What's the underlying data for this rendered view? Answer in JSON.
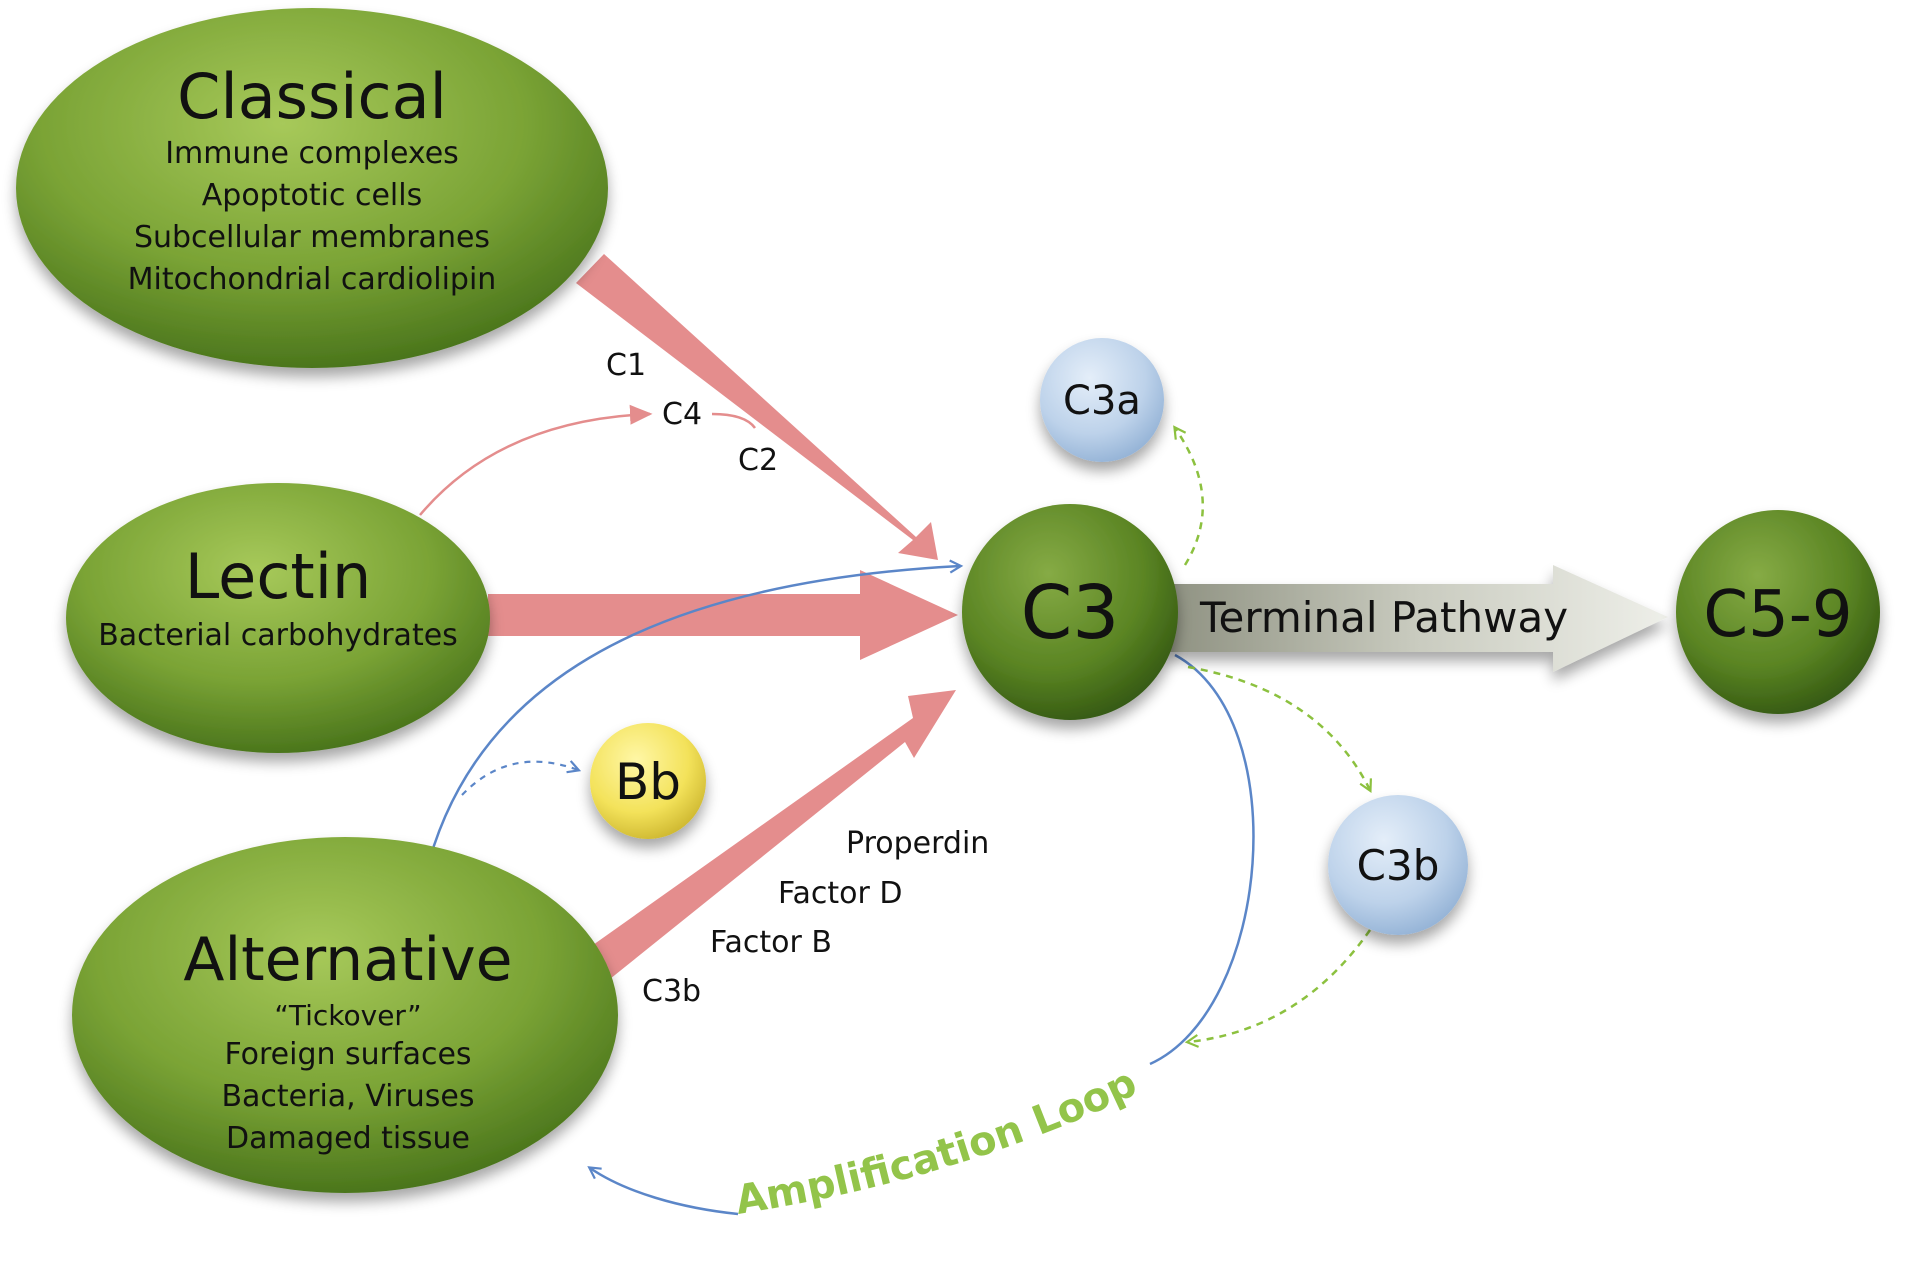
{
  "pathways": {
    "classical": {
      "title": "Classical",
      "triggers": [
        "Immune complexes",
        "Apoptotic cells",
        "Subcellular membranes",
        "Mitochondrial cardiolipin"
      ]
    },
    "lectin": {
      "title": "Lectin",
      "triggers": [
        "Bacterial carbohydrates"
      ]
    },
    "alternative": {
      "title": "Alternative",
      "triggers": [
        "“Tickover”",
        "Foreign surfaces",
        "Bacteria, Viruses",
        "Damaged tissue"
      ]
    }
  },
  "nodes": {
    "c3": "C3",
    "c3a": "C3a",
    "c3b": "C3b",
    "bb": "Bb",
    "c5_9": "C5-9"
  },
  "classical_factors": {
    "c1": "C1",
    "c4": "C4",
    "c2": "C2"
  },
  "alternative_factors": {
    "properdin": "Properdin",
    "factor_d": "Factor D",
    "factor_b": "Factor B",
    "c3b": "C3b"
  },
  "terminal_pathway": "Terminal Pathway",
  "amplification_loop": "Amplification Loop",
  "colors": {
    "pathway_green": "#6e9a2a",
    "arrow_red": "#e48d8d",
    "loop_blue": "#5b86c8",
    "dash_green": "#8cc13f",
    "amp_text": "#93c44a",
    "c3a_c3b_blue": "#b9cfe8",
    "bb_yellow": "#f3e45a",
    "terminal_gray": "#b4b6aa"
  }
}
